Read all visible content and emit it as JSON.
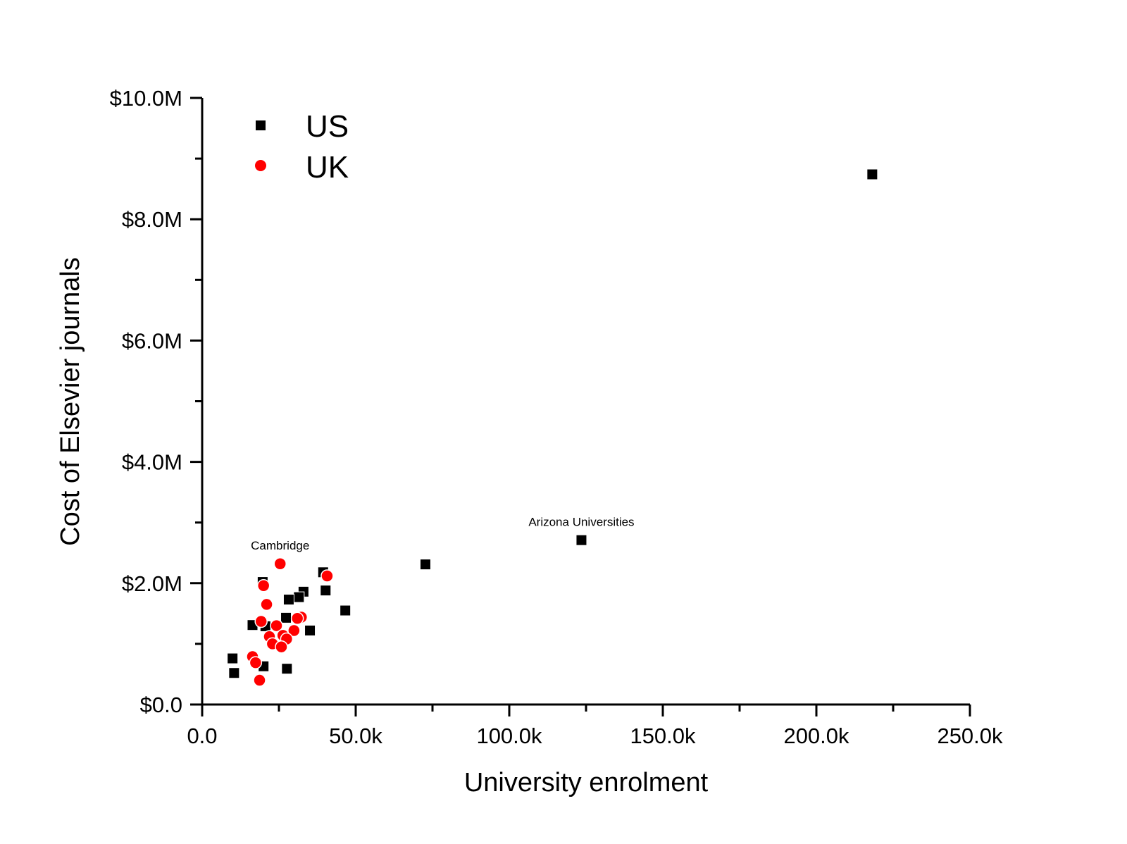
{
  "chart_data": {
    "type": "scatter",
    "title": "",
    "xlabel": "University enrolment",
    "ylabel": "Cost of Elsevier journals",
    "xlim": [
      0,
      250000
    ],
    "ylim": [
      0,
      10000000
    ],
    "x_ticks": [
      0,
      50000,
      100000,
      150000,
      200000,
      250000
    ],
    "x_tick_labels": [
      "0.0",
      "50.0k",
      "100.0k",
      "150.0k",
      "200.0k",
      "250.0k"
    ],
    "y_ticks": [
      0,
      2000000,
      4000000,
      6000000,
      8000000,
      10000000
    ],
    "y_tick_labels": [
      "$0.0",
      "$2.0M",
      "$4.0M",
      "$6.0M",
      "$8.0M",
      "$10.0M"
    ],
    "grid": false,
    "legend_position": "top-left",
    "series": [
      {
        "name": "US",
        "marker": "square",
        "color": "#000000",
        "points": [
          [
            218200,
            8740000
          ],
          [
            123500,
            2710000
          ],
          [
            72700,
            2310000
          ],
          [
            46600,
            1550000
          ],
          [
            40200,
            1880000
          ],
          [
            39400,
            2180000
          ],
          [
            35100,
            1220000
          ],
          [
            33000,
            1860000
          ],
          [
            31500,
            1770000
          ],
          [
            28200,
            1730000
          ],
          [
            27300,
            1430000
          ],
          [
            27600,
            590000
          ],
          [
            19700,
            2020000
          ],
          [
            16400,
            1310000
          ],
          [
            20600,
            1290000
          ],
          [
            9900,
            760000
          ],
          [
            10400,
            520000
          ],
          [
            20000,
            630000
          ]
        ]
      },
      {
        "name": "UK",
        "marker": "circle",
        "color": "#ff0000",
        "points": [
          [
            25400,
            2320000
          ],
          [
            40700,
            2120000
          ],
          [
            20000,
            1960000
          ],
          [
            21000,
            1650000
          ],
          [
            19200,
            1370000
          ],
          [
            32300,
            1440000
          ],
          [
            31000,
            1420000
          ],
          [
            24200,
            1300000
          ],
          [
            29900,
            1220000
          ],
          [
            21900,
            1120000
          ],
          [
            26300,
            1140000
          ],
          [
            27500,
            1080000
          ],
          [
            22900,
            1000000
          ],
          [
            25800,
            950000
          ],
          [
            16400,
            790000
          ],
          [
            17400,
            690000
          ],
          [
            18700,
            400000
          ]
        ]
      }
    ],
    "annotations": [
      {
        "text": "Cambridge",
        "x": 25400,
        "y": 2320000
      },
      {
        "text": "Arizona Universities",
        "x": 123500,
        "y": 2710000
      }
    ]
  }
}
